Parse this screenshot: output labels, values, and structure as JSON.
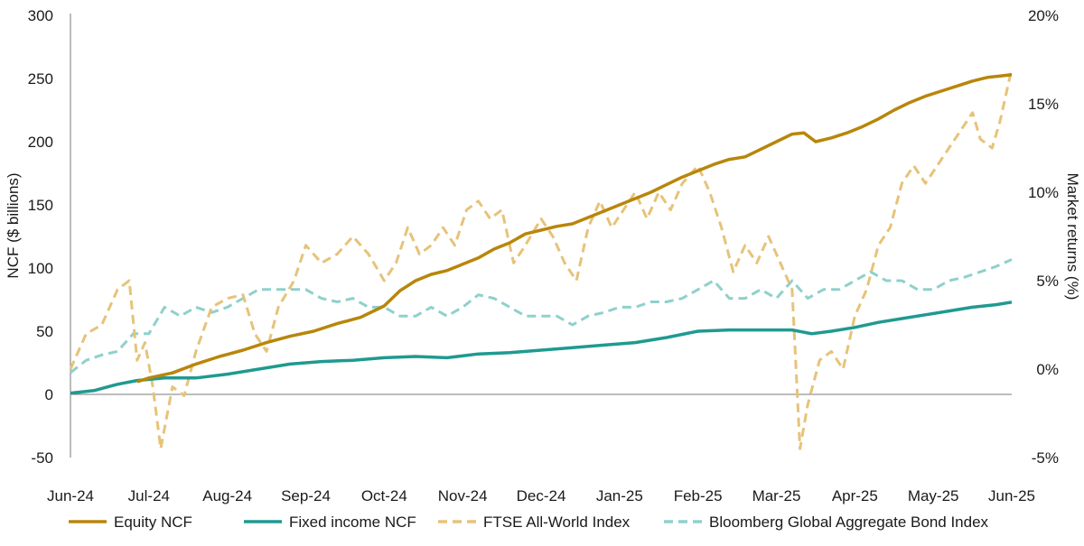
{
  "chart_data": {
    "type": "line",
    "title": "",
    "ylabel_left": "NCF ($ billions)",
    "ylabel_right": "Market returns (%)",
    "ylim_left": [
      -50,
      300
    ],
    "ylim_right": [
      -5,
      20
    ],
    "yticks_left": [
      "-50",
      "0",
      "50",
      "100",
      "150",
      "200",
      "250",
      "300"
    ],
    "yticks_right": [
      "-5%",
      "0%",
      "5%",
      "10%",
      "15%",
      "20%"
    ],
    "x_range": [
      0,
      12
    ],
    "x_ticks": [
      {
        "x": 0,
        "label": "Jun-24"
      },
      {
        "x": 1,
        "label": "Jul-24"
      },
      {
        "x": 2,
        "label": "Aug-24"
      },
      {
        "x": 3,
        "label": "Sep-24"
      },
      {
        "x": 4,
        "label": "Oct-24"
      },
      {
        "x": 5,
        "label": "Nov-24"
      },
      {
        "x": 6,
        "label": "Dec-24"
      },
      {
        "x": 7,
        "label": "Jan-25"
      },
      {
        "x": 8,
        "label": "Feb-25"
      },
      {
        "x": 9,
        "label": "Mar-25"
      },
      {
        "x": 10,
        "label": "Apr-25"
      },
      {
        "x": 11,
        "label": "May-25"
      },
      {
        "x": 12,
        "label": "Jun-25"
      }
    ],
    "grid": false,
    "legend_position": "bottom",
    "series": [
      {
        "name": "Equity NCF",
        "axis": "left",
        "color": "#b8860b",
        "dashed": false,
        "points": [
          [
            0.85,
            10
          ],
          [
            1.0,
            13
          ],
          [
            1.3,
            17
          ],
          [
            1.6,
            24
          ],
          [
            1.9,
            30
          ],
          [
            2.2,
            35
          ],
          [
            2.5,
            41
          ],
          [
            2.8,
            46
          ],
          [
            3.1,
            50
          ],
          [
            3.4,
            56
          ],
          [
            3.7,
            61
          ],
          [
            4.0,
            70
          ],
          [
            4.2,
            82
          ],
          [
            4.4,
            90
          ],
          [
            4.6,
            95
          ],
          [
            4.8,
            98
          ],
          [
            5.0,
            103
          ],
          [
            5.2,
            108
          ],
          [
            5.4,
            115
          ],
          [
            5.6,
            120
          ],
          [
            5.8,
            127
          ],
          [
            6.0,
            130
          ],
          [
            6.2,
            133
          ],
          [
            6.4,
            135
          ],
          [
            6.6,
            140
          ],
          [
            6.8,
            145
          ],
          [
            7.0,
            150
          ],
          [
            7.2,
            155
          ],
          [
            7.4,
            160
          ],
          [
            7.6,
            166
          ],
          [
            7.8,
            172
          ],
          [
            8.0,
            177
          ],
          [
            8.2,
            182
          ],
          [
            8.4,
            186
          ],
          [
            8.6,
            188
          ],
          [
            8.8,
            194
          ],
          [
            9.0,
            200
          ],
          [
            9.2,
            206
          ],
          [
            9.35,
            207
          ],
          [
            9.5,
            200
          ],
          [
            9.7,
            203
          ],
          [
            9.9,
            207
          ],
          [
            10.1,
            212
          ],
          [
            10.3,
            218
          ],
          [
            10.5,
            225
          ],
          [
            10.7,
            231
          ],
          [
            10.9,
            236
          ],
          [
            11.1,
            240
          ],
          [
            11.3,
            244
          ],
          [
            11.5,
            248
          ],
          [
            11.7,
            251
          ],
          [
            11.85,
            252
          ],
          [
            12.0,
            253
          ]
        ]
      },
      {
        "name": "Fixed income NCF",
        "axis": "left",
        "color": "#1f9a90",
        "dashed": false,
        "points": [
          [
            0.0,
            1
          ],
          [
            0.3,
            3
          ],
          [
            0.6,
            8
          ],
          [
            0.85,
            11
          ],
          [
            1.2,
            13
          ],
          [
            1.6,
            13
          ],
          [
            2.0,
            16
          ],
          [
            2.4,
            20
          ],
          [
            2.8,
            24
          ],
          [
            3.2,
            26
          ],
          [
            3.6,
            27
          ],
          [
            4.0,
            29
          ],
          [
            4.4,
            30
          ],
          [
            4.8,
            29
          ],
          [
            5.2,
            32
          ],
          [
            5.6,
            33
          ],
          [
            6.0,
            35
          ],
          [
            6.4,
            37
          ],
          [
            6.8,
            39
          ],
          [
            7.2,
            41
          ],
          [
            7.6,
            45
          ],
          [
            8.0,
            50
          ],
          [
            8.4,
            51
          ],
          [
            8.8,
            51
          ],
          [
            9.2,
            51
          ],
          [
            9.45,
            48
          ],
          [
            9.7,
            50
          ],
          [
            10.0,
            53
          ],
          [
            10.3,
            57
          ],
          [
            10.6,
            60
          ],
          [
            10.9,
            63
          ],
          [
            11.2,
            66
          ],
          [
            11.5,
            69
          ],
          [
            11.8,
            71
          ],
          [
            12.0,
            73
          ]
        ]
      },
      {
        "name": "FTSE All-World Index",
        "axis": "right",
        "color": "#e6c37a",
        "dashed": true,
        "points": [
          [
            0.0,
            0.0
          ],
          [
            0.2,
            2.0
          ],
          [
            0.4,
            2.5
          ],
          [
            0.6,
            4.5
          ],
          [
            0.75,
            5.0
          ],
          [
            0.85,
            0.5
          ],
          [
            0.95,
            1.5
          ],
          [
            1.05,
            -1.0
          ],
          [
            1.15,
            -4.5
          ],
          [
            1.3,
            -1.0
          ],
          [
            1.45,
            -1.5
          ],
          [
            1.6,
            1.0
          ],
          [
            1.8,
            3.5
          ],
          [
            2.0,
            4.0
          ],
          [
            2.2,
            4.2
          ],
          [
            2.35,
            2.0
          ],
          [
            2.5,
            1.0
          ],
          [
            2.65,
            3.5
          ],
          [
            2.85,
            5.0
          ],
          [
            3.0,
            7.0
          ],
          [
            3.2,
            6.0
          ],
          [
            3.4,
            6.5
          ],
          [
            3.6,
            7.5
          ],
          [
            3.8,
            6.5
          ],
          [
            4.0,
            5.0
          ],
          [
            4.15,
            6.0
          ],
          [
            4.3,
            8.0
          ],
          [
            4.45,
            6.5
          ],
          [
            4.6,
            7.0
          ],
          [
            4.75,
            8.0
          ],
          [
            4.9,
            7.0
          ],
          [
            5.05,
            9.0
          ],
          [
            5.2,
            9.5
          ],
          [
            5.35,
            8.5
          ],
          [
            5.5,
            9.0
          ],
          [
            5.65,
            6.0
          ],
          [
            5.8,
            7.0
          ],
          [
            6.0,
            8.5
          ],
          [
            6.15,
            7.5
          ],
          [
            6.3,
            6.0
          ],
          [
            6.45,
            5.0
          ],
          [
            6.6,
            8.0
          ],
          [
            6.75,
            9.5
          ],
          [
            6.9,
            8.0
          ],
          [
            7.05,
            9.0
          ],
          [
            7.2,
            10.0
          ],
          [
            7.35,
            8.5
          ],
          [
            7.5,
            10.0
          ],
          [
            7.65,
            9.0
          ],
          [
            7.8,
            10.5
          ],
          [
            8.0,
            11.5
          ],
          [
            8.15,
            10.0
          ],
          [
            8.3,
            8.0
          ],
          [
            8.45,
            5.5
          ],
          [
            8.6,
            7.0
          ],
          [
            8.75,
            6.0
          ],
          [
            8.9,
            7.5
          ],
          [
            9.0,
            6.5
          ],
          [
            9.1,
            5.5
          ],
          [
            9.2,
            4.5
          ],
          [
            9.3,
            -4.5
          ],
          [
            9.4,
            -2.0
          ],
          [
            9.55,
            0.5
          ],
          [
            9.7,
            1.0
          ],
          [
            9.85,
            0.0
          ],
          [
            10.0,
            3.0
          ],
          [
            10.15,
            4.5
          ],
          [
            10.3,
            7.0
          ],
          [
            10.45,
            8.0
          ],
          [
            10.6,
            10.5
          ],
          [
            10.75,
            11.5
          ],
          [
            10.9,
            10.5
          ],
          [
            11.05,
            11.5
          ],
          [
            11.2,
            12.5
          ],
          [
            11.35,
            13.5
          ],
          [
            11.5,
            14.5
          ],
          [
            11.6,
            13.0
          ],
          [
            11.75,
            12.5
          ],
          [
            11.85,
            14.0
          ],
          [
            11.95,
            16.0
          ],
          [
            12.0,
            17.0
          ]
        ]
      },
      {
        "name": "Bloomberg Global Aggregate Bond Index",
        "axis": "right",
        "color": "#8fd0cc",
        "dashed": true,
        "points": [
          [
            0.0,
            -0.2
          ],
          [
            0.2,
            0.5
          ],
          [
            0.4,
            0.8
          ],
          [
            0.6,
            1.0
          ],
          [
            0.8,
            2.0
          ],
          [
            1.0,
            2.0
          ],
          [
            1.2,
            3.5
          ],
          [
            1.4,
            3.0
          ],
          [
            1.6,
            3.5
          ],
          [
            1.8,
            3.2
          ],
          [
            2.0,
            3.5
          ],
          [
            2.2,
            4.0
          ],
          [
            2.4,
            4.5
          ],
          [
            2.6,
            4.5
          ],
          [
            2.8,
            4.5
          ],
          [
            3.0,
            4.5
          ],
          [
            3.2,
            4.0
          ],
          [
            3.4,
            3.8
          ],
          [
            3.6,
            4.0
          ],
          [
            3.8,
            3.5
          ],
          [
            4.0,
            3.5
          ],
          [
            4.2,
            3.0
          ],
          [
            4.4,
            3.0
          ],
          [
            4.6,
            3.5
          ],
          [
            4.8,
            3.0
          ],
          [
            5.0,
            3.5
          ],
          [
            5.2,
            4.2
          ],
          [
            5.4,
            4.0
          ],
          [
            5.6,
            3.5
          ],
          [
            5.8,
            3.0
          ],
          [
            6.0,
            3.0
          ],
          [
            6.2,
            3.0
          ],
          [
            6.4,
            2.5
          ],
          [
            6.6,
            3.0
          ],
          [
            6.8,
            3.2
          ],
          [
            7.0,
            3.5
          ],
          [
            7.2,
            3.5
          ],
          [
            7.4,
            3.8
          ],
          [
            7.6,
            3.8
          ],
          [
            7.8,
            4.0
          ],
          [
            8.0,
            4.5
          ],
          [
            8.2,
            5.0
          ],
          [
            8.4,
            4.0
          ],
          [
            8.6,
            4.0
          ],
          [
            8.8,
            4.5
          ],
          [
            9.0,
            4.0
          ],
          [
            9.2,
            5.0
          ],
          [
            9.4,
            4.0
          ],
          [
            9.6,
            4.5
          ],
          [
            9.8,
            4.5
          ],
          [
            10.0,
            5.0
          ],
          [
            10.2,
            5.5
          ],
          [
            10.4,
            5.0
          ],
          [
            10.6,
            5.0
          ],
          [
            10.8,
            4.5
          ],
          [
            11.0,
            4.5
          ],
          [
            11.2,
            5.0
          ],
          [
            11.4,
            5.2
          ],
          [
            11.6,
            5.5
          ],
          [
            11.8,
            5.8
          ],
          [
            12.0,
            6.2
          ]
        ]
      }
    ]
  }
}
